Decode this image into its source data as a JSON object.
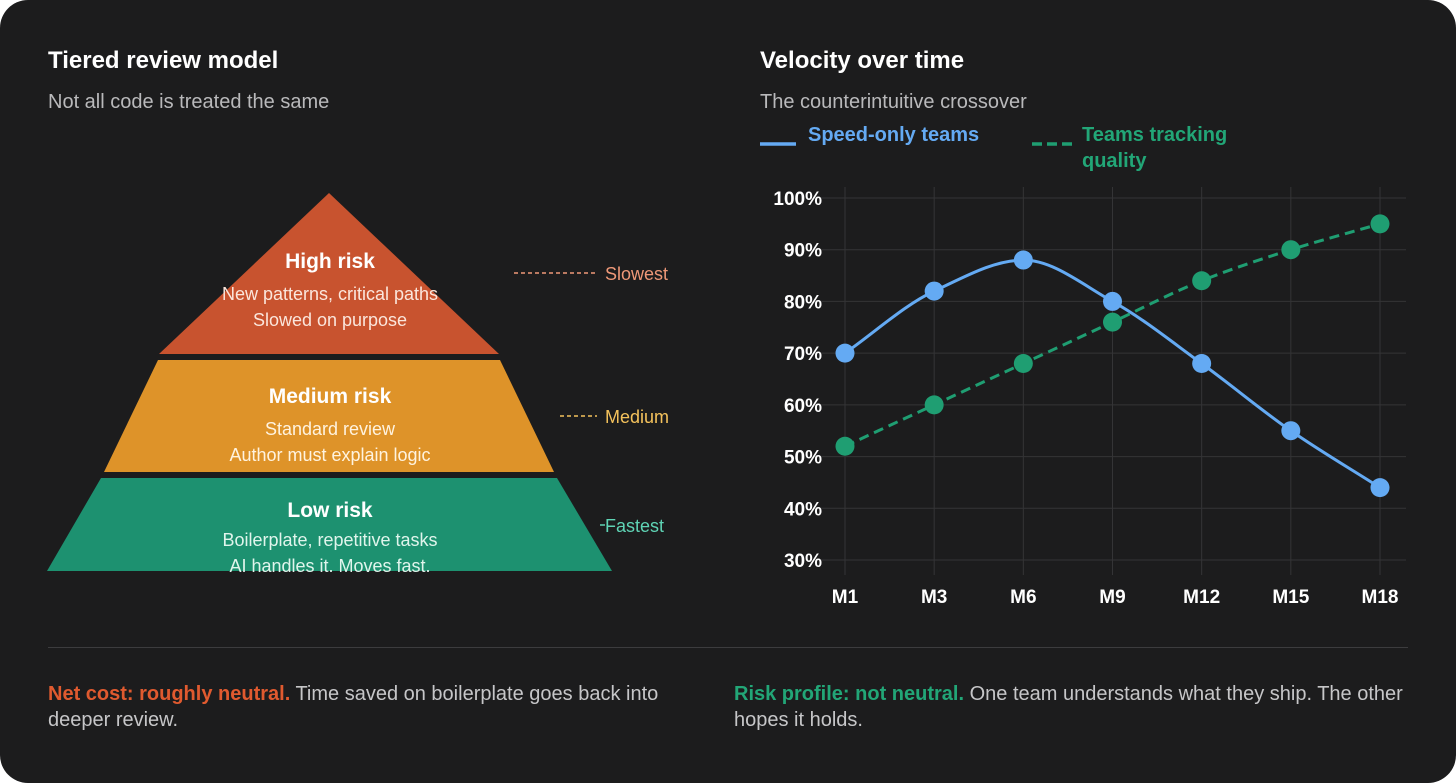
{
  "colors": {
    "background": "#1c1c1d",
    "high": "#c8532f",
    "medium": "#de9329",
    "low": "#1d9170",
    "speed_line": "#64aaf3",
    "quality_line": "#1f9e72",
    "slowest_label": "#ee9878",
    "medium_label": "#f4c25c",
    "fastest_label": "#5fd4b5",
    "cost_accent": "#e05a2f",
    "risk_accent": "#22a677"
  },
  "pyramid": {
    "title": "Tiered review model",
    "subtitle": "Not all code is treated the same",
    "tiers": [
      {
        "name": "High risk",
        "line1": "New patterns, critical paths",
        "line2": "Slowed on purpose",
        "speed": "Slowest"
      },
      {
        "name": "Medium risk",
        "line1": "Standard review",
        "line2": "Author must explain logic",
        "speed": "Medium"
      },
      {
        "name": "Low risk",
        "line1": "Boilerplate, repetitive tasks",
        "line2": "AI handles it. Moves fast.",
        "speed": "Fastest"
      }
    ]
  },
  "velocity": {
    "title": "Velocity over time",
    "subtitle": "The counterintuitive crossover"
  },
  "chart_data": {
    "type": "line",
    "title": "Velocity over time",
    "subtitle": "The counterintuitive crossover",
    "categories": [
      "M1",
      "M3",
      "M6",
      "M9",
      "M12",
      "M15",
      "M18"
    ],
    "series": [
      {
        "name": "Speed-only teams",
        "values": [
          70,
          82,
          88,
          80,
          68,
          55,
          44
        ],
        "style": "solid-smooth"
      },
      {
        "name": "Teams tracking quality",
        "values": [
          52,
          60,
          68,
          76,
          84,
          90,
          95
        ],
        "style": "dashed"
      }
    ],
    "ylim": [
      30,
      100
    ],
    "y_ticks": [
      "30%",
      "40%",
      "50%",
      "60%",
      "70%",
      "80%",
      "90%",
      "100%"
    ],
    "grid": true,
    "legend_position": "top-left",
    "xlabel": "",
    "ylabel": ""
  },
  "notes": {
    "cost_strong": "Net cost: roughly neutral.",
    "cost_text": " Time saved on boilerplate goes back into deeper review.",
    "risk_strong": "Risk profile: not neutral.",
    "risk_text": " One team understands what they ship. The other hopes it holds."
  }
}
